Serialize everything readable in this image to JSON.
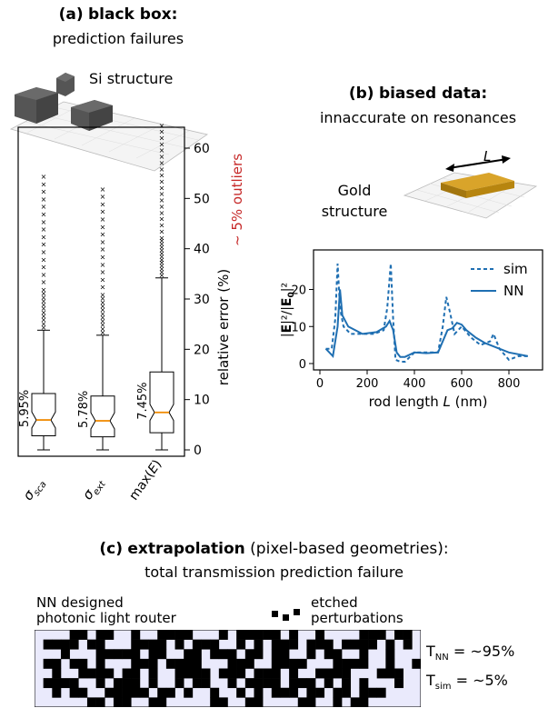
{
  "panel_a": {
    "label": "(a)",
    "title": "black box:",
    "subtitle": "prediction failures",
    "structure_label": "Si structure",
    "outlier_label": "~ 5% outliers"
  },
  "panel_b": {
    "label": "(b)",
    "title": "biased data:",
    "subtitle": "innaccurate on resonances",
    "structure_label_line1": "Gold",
    "structure_label_line2": "structure",
    "length_label": "L"
  },
  "panel_c": {
    "label": "(c)",
    "title": "extrapolation",
    "title_suffix": "(pixel-based geometries):",
    "subtitle": "total transmission prediction failure",
    "router_label_line1": "NN designed",
    "router_label_line2": "photonic light router",
    "etched_label_line1": "etched",
    "etched_label_line2": "perturbations",
    "t_nn": "T_NN = ~95%",
    "t_sim": "T_sim = ~5%"
  },
  "chart_data": [
    {
      "type": "box",
      "categories": [
        "σ_sca",
        "σ_ext",
        "max(E)"
      ],
      "ylabel": "relative error (%)",
      "ylim": [
        0,
        65
      ],
      "yticks": [
        0,
        10,
        20,
        30,
        40,
        50,
        60
      ],
      "medians": [
        5.95,
        5.78,
        7.45
      ],
      "median_labels": [
        "5.95%",
        "5.78%",
        "7.45%"
      ],
      "q1": [
        2.8,
        2.6,
        3.4
      ],
      "q3": [
        11.2,
        10.7,
        15.5
      ],
      "whisker_low": [
        0,
        0,
        0
      ],
      "whisker_high": [
        23.8,
        22.8,
        34.2
      ],
      "outlier_max": [
        55,
        52,
        65
      ]
    },
    {
      "type": "line",
      "xlabel": "rod length L (nm)",
      "ylabel": "|E|²/|E₀|²",
      "xlim": [
        0,
        900
      ],
      "ylim": [
        0,
        27
      ],
      "xticks": [
        0,
        200,
        400,
        600,
        800
      ],
      "yticks": [
        0,
        10,
        20
      ],
      "series": [
        {
          "name": "sim",
          "style": "dashed",
          "x": [
            25,
            50,
            65,
            75,
            85,
            100,
            130,
            180,
            230,
            270,
            285,
            300,
            310,
            320,
            340,
            360,
            400,
            450,
            500,
            520,
            535,
            550,
            570,
            600,
            640,
            680,
            720,
            735,
            760,
            800,
            840,
            880
          ],
          "y": [
            4,
            4,
            12,
            27,
            15,
            10,
            8,
            8,
            8,
            9,
            15,
            27,
            12,
            1,
            0.5,
            0.5,
            3,
            3,
            3,
            10,
            18,
            14,
            8,
            10,
            7,
            5,
            6,
            8,
            4,
            1,
            2,
            2
          ]
        },
        {
          "name": "NN",
          "style": "solid",
          "x": [
            25,
            55,
            75,
            85,
            95,
            120,
            180,
            240,
            280,
            295,
            310,
            325,
            340,
            360,
            400,
            450,
            500,
            540,
            560,
            580,
            600,
            620,
            660,
            700,
            760,
            800,
            840,
            880
          ],
          "y": [
            4,
            2,
            10,
            20,
            13,
            10,
            8,
            8.5,
            10,
            11.5,
            9,
            3,
            1.8,
            1.8,
            3,
            2.8,
            3,
            9,
            9.5,
            11,
            10.5,
            9,
            7,
            5.5,
            4,
            3,
            2.5,
            2
          ]
        }
      ]
    }
  ]
}
